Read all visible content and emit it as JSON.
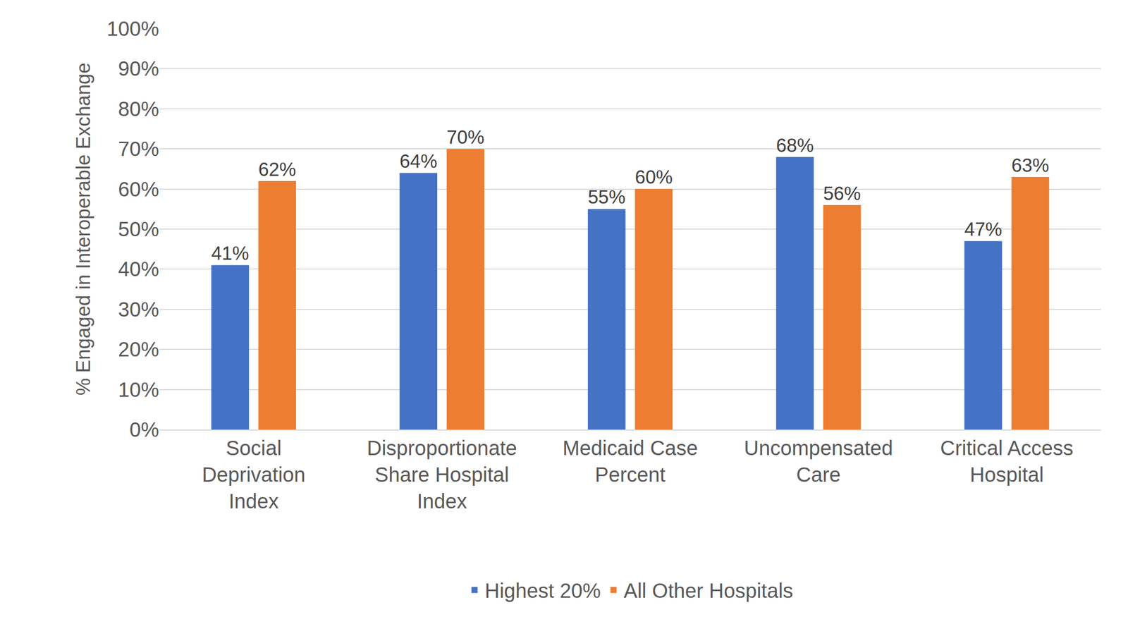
{
  "chart_data": {
    "type": "bar",
    "y_label": "% Engaged in Interoperable Exchange",
    "categories": [
      "Social Deprivation Index",
      "Disproportionate Share Hospital Index",
      "Medicaid Case Percent",
      "Uncompensated Care",
      "Critical Access Hospital"
    ],
    "series": [
      {
        "name": "Highest 20%",
        "color": "#4472c4",
        "values": [
          41,
          64,
          55,
          68,
          47
        ],
        "value_labels": [
          "41%",
          "64%",
          "55%",
          "68%",
          "47%"
        ]
      },
      {
        "name": "All Other Hospitals",
        "color": "#ed7d31",
        "values": [
          62,
          70,
          60,
          56,
          63
        ],
        "value_labels": [
          "62%",
          "70%",
          "60%",
          "56%",
          "63%"
        ]
      }
    ],
    "ylim": [
      0,
      100
    ],
    "yticks": [
      {
        "value": 0,
        "label": "0%"
      },
      {
        "value": 10,
        "label": "10%"
      },
      {
        "value": 20,
        "label": "20%"
      },
      {
        "value": 30,
        "label": "30%"
      },
      {
        "value": 40,
        "label": "40%"
      },
      {
        "value": 50,
        "label": "50%"
      },
      {
        "value": 60,
        "label": "60%"
      },
      {
        "value": 70,
        "label": "70%"
      },
      {
        "value": 80,
        "label": "80%"
      },
      {
        "value": 90,
        "label": "90%"
      },
      {
        "value": 100,
        "label": "100%"
      }
    ],
    "grid": true,
    "legend": "bottom",
    "data_labels": true
  }
}
